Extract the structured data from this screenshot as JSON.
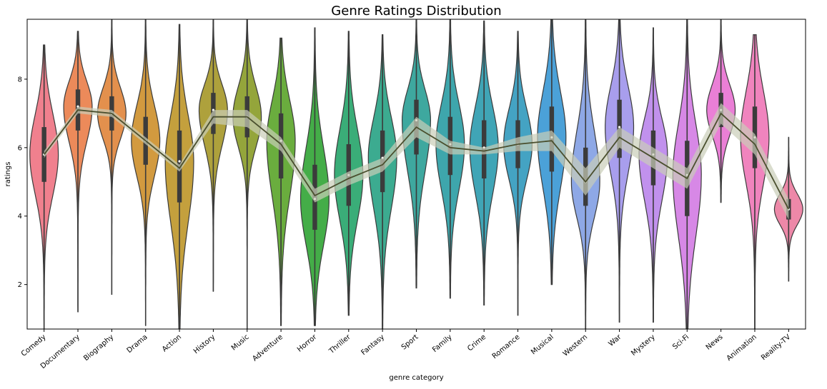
{
  "chart_data": {
    "type": "violin",
    "title": "Genre Ratings Distribution",
    "xlabel": "genre category",
    "ylabel": "ratings",
    "ylim": [
      0.7,
      9.75
    ],
    "yticks": [
      2,
      4,
      6,
      8
    ],
    "grid": false,
    "categories": [
      "Comedy",
      "Documentary",
      "Biography",
      "Drama",
      "Action",
      "History",
      "Music",
      "Adventure",
      "Horror",
      "Thriller",
      "Fantasy",
      "Sport",
      "Family",
      "Crime",
      "Romance",
      "Musical",
      "Western",
      "War",
      "Mystery",
      "Sci-Fi",
      "News",
      "Animation",
      "Reality-TV"
    ],
    "colors": [
      "#f0808e",
      "#ec8a5a",
      "#e3904d",
      "#d29a3f",
      "#c4a03d",
      "#aea13c",
      "#94a53b",
      "#6aad3e",
      "#44ad48",
      "#3aad78",
      "#3cab90",
      "#3ea89f",
      "#3ea6ac",
      "#40a5b6",
      "#44a3c3",
      "#4ba1d8",
      "#8ea8e6",
      "#a89eed",
      "#c191ed",
      "#d788e6",
      "#ea7fd6",
      "#f084be",
      "#ed88a8"
    ],
    "distributions": [
      {
        "min": 0.7,
        "q1": 5.0,
        "median": 5.8,
        "q3": 6.6,
        "max": 9.0,
        "mean": 5.8
      },
      {
        "min": 1.2,
        "q1": 6.5,
        "median": 7.2,
        "q3": 7.7,
        "max": 9.4,
        "mean": 7.1
      },
      {
        "min": 1.7,
        "q1": 6.5,
        "median": 7.0,
        "q3": 7.5,
        "max": 9.75,
        "mean": 7.0
      },
      {
        "min": 0.8,
        "q1": 5.5,
        "median": 6.2,
        "q3": 6.9,
        "max": 9.75,
        "mean": 6.2
      },
      {
        "min": 0.7,
        "q1": 4.4,
        "median": 5.6,
        "q3": 6.5,
        "max": 9.6,
        "mean": 5.4
      },
      {
        "min": 1.8,
        "q1": 6.4,
        "median": 7.1,
        "q3": 7.6,
        "max": 9.75,
        "mean": 6.9
      },
      {
        "min": 0.7,
        "q1": 6.3,
        "median": 6.9,
        "q3": 7.5,
        "max": 9.75,
        "mean": 6.9
      },
      {
        "min": 0.8,
        "q1": 5.1,
        "median": 6.2,
        "q3": 7.0,
        "max": 9.2,
        "mean": 6.1
      },
      {
        "min": 0.8,
        "q1": 3.6,
        "median": 4.5,
        "q3": 5.5,
        "max": 9.5,
        "mean": 4.6
      },
      {
        "min": 1.1,
        "q1": 4.3,
        "median": 5.2,
        "q3": 6.1,
        "max": 9.4,
        "mean": 5.1
      },
      {
        "min": 0.7,
        "q1": 4.7,
        "median": 5.7,
        "q3": 6.5,
        "max": 9.3,
        "mean": 5.5
      },
      {
        "min": 1.9,
        "q1": 5.8,
        "median": 6.8,
        "q3": 7.4,
        "max": 9.75,
        "mean": 6.6
      },
      {
        "min": 1.6,
        "q1": 5.2,
        "median": 6.1,
        "q3": 6.9,
        "max": 9.75,
        "mean": 6.0
      },
      {
        "min": 1.4,
        "q1": 5.1,
        "median": 6.0,
        "q3": 6.8,
        "max": 9.7,
        "mean": 5.9
      },
      {
        "min": 1.1,
        "q1": 5.4,
        "median": 6.1,
        "q3": 6.8,
        "max": 9.4,
        "mean": 6.1
      },
      {
        "min": 2.0,
        "q1": 5.3,
        "median": 6.3,
        "q3": 7.2,
        "max": 9.75,
        "mean": 6.2
      },
      {
        "min": 0.7,
        "q1": 4.3,
        "median": 5.0,
        "q3": 6.0,
        "max": 9.75,
        "mean": 5.0
      },
      {
        "min": 0.9,
        "q1": 5.7,
        "median": 6.6,
        "q3": 7.4,
        "max": 9.75,
        "mean": 6.3
      },
      {
        "min": 0.9,
        "q1": 4.9,
        "median": 5.8,
        "q3": 6.5,
        "max": 9.5,
        "mean": 5.7
      },
      {
        "min": 0.7,
        "q1": 4.0,
        "median": 5.2,
        "q3": 6.2,
        "max": 9.75,
        "mean": 5.1
      },
      {
        "min": 4.4,
        "q1": 6.6,
        "median": 7.1,
        "q3": 7.6,
        "max": 9.75,
        "mean": 7.0
      },
      {
        "min": 0.7,
        "q1": 5.4,
        "median": 6.3,
        "q3": 7.2,
        "max": 9.3,
        "mean": 6.1
      },
      {
        "min": 2.1,
        "q1": 3.9,
        "median": 4.2,
        "q3": 4.5,
        "max": 6.3,
        "mean": 4.2
      }
    ],
    "overlay_line": {
      "type": "line",
      "values": [
        5.8,
        7.1,
        7.0,
        6.2,
        5.4,
        6.9,
        6.9,
        6.1,
        4.6,
        5.1,
        5.5,
        6.6,
        6.0,
        5.9,
        6.1,
        6.2,
        5.0,
        6.3,
        5.7,
        5.1,
        7.0,
        6.1,
        4.2
      ],
      "ci_low": [
        5.7,
        7.0,
        6.9,
        6.1,
        5.3,
        6.7,
        6.6,
        5.9,
        4.4,
        4.9,
        5.3,
        6.3,
        5.8,
        5.8,
        5.9,
        5.9,
        4.6,
        6.0,
        5.4,
        4.8,
        6.7,
        5.8,
        3.9
      ],
      "ci_high": [
        5.9,
        7.2,
        7.1,
        6.3,
        5.5,
        7.1,
        7.1,
        6.3,
        4.8,
        5.3,
        5.7,
        6.9,
        6.2,
        6.0,
        6.3,
        6.5,
        5.4,
        6.6,
        6.0,
        5.4,
        7.3,
        6.4,
        4.5
      ],
      "color": "#4a4f2e",
      "band_color": "#c9cdb8"
    }
  }
}
